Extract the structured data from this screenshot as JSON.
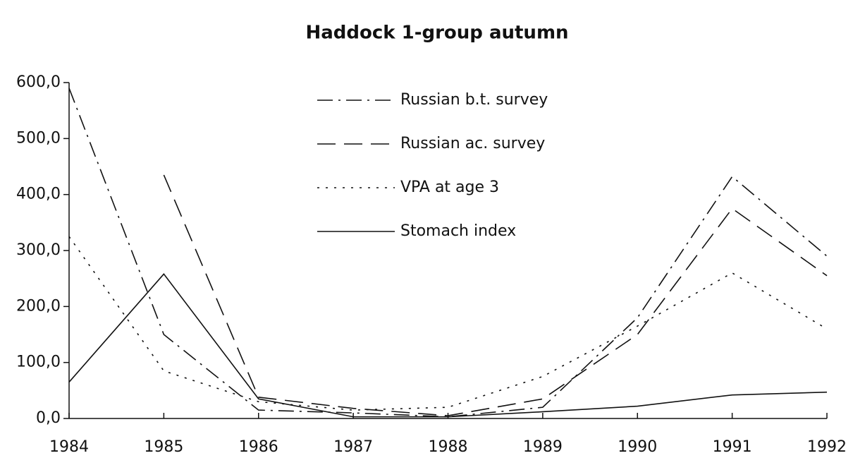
{
  "chart_data": {
    "type": "line",
    "title": "Haddock 1-group autumn",
    "categories": [
      "1984",
      "1985",
      "1986",
      "1987",
      "1988",
      "1989",
      "1990",
      "1991",
      "1992"
    ],
    "ylim": [
      0,
      600
    ],
    "yticks": [
      {
        "value": 0,
        "label": "0,0"
      },
      {
        "value": 100,
        "label": "100,0"
      },
      {
        "value": 200,
        "label": "200,0"
      },
      {
        "value": 300,
        "label": "300,0"
      },
      {
        "value": 400,
        "label": "400,0"
      },
      {
        "value": 500,
        "label": "500,0"
      },
      {
        "value": 600,
        "label": "600,0"
      }
    ],
    "grid": false,
    "series": [
      {
        "name": "Russian b.t. survey",
        "color": "#111111",
        "dash": "dashdot",
        "values": [
          590,
          150,
          15,
          10,
          3,
          20,
          180,
          432,
          290
        ]
      },
      {
        "name": "Russian ac. survey",
        "color": "#111111",
        "dash": "dashed",
        "values": [
          null,
          435,
          38,
          18,
          5,
          35,
          150,
          375,
          255
        ]
      },
      {
        "name": "VPA at age 3",
        "color": "#111111",
        "dash": "dotted",
        "values": [
          325,
          85,
          30,
          15,
          20,
          75,
          165,
          260,
          160
        ]
      },
      {
        "name": "Stomach index",
        "color": "#111111",
        "dash": "solid",
        "values": [
          65,
          258,
          35,
          3,
          3,
          12,
          22,
          42,
          47
        ]
      }
    ]
  }
}
